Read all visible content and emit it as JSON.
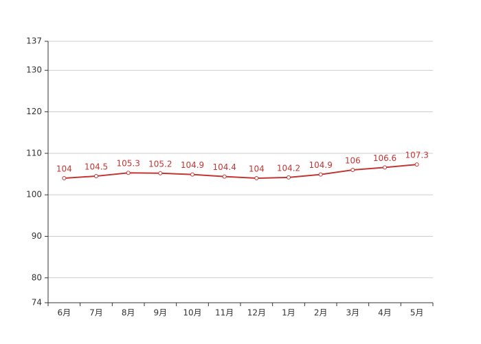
{
  "chart_data": {
    "type": "line",
    "categories": [
      "6月",
      "7月",
      "8月",
      "9月",
      "10月",
      "11月",
      "12月",
      "1月",
      "2月",
      "3月",
      "4月",
      "5月"
    ],
    "values": [
      104,
      104.5,
      105.3,
      105.2,
      104.9,
      104.4,
      104,
      104.2,
      104.9,
      106,
      106.6,
      107.3
    ],
    "color": "#c23531",
    "ylim": [
      74,
      137
    ],
    "yticks": [
      74,
      80,
      90,
      100,
      110,
      120,
      130,
      137
    ],
    "grid": true
  }
}
